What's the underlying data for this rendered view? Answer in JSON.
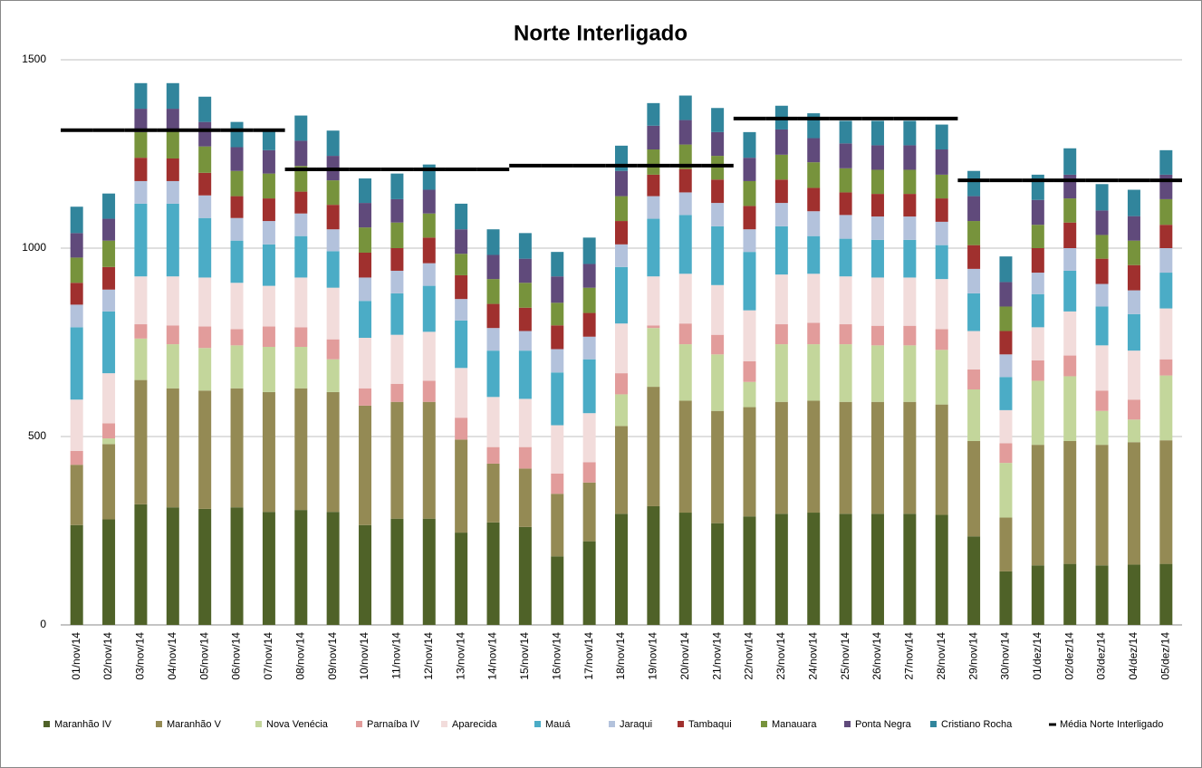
{
  "chart_data": {
    "type": "bar",
    "stacked": true,
    "title": "Norte Interligado",
    "categories": [
      "01/nov/14",
      "02/nov/14",
      "03/nov/14",
      "04/nov/14",
      "05/nov/14",
      "06/nov/14",
      "07/nov/14",
      "08/nov/14",
      "09/nov/14",
      "10/nov/14",
      "11/nov/14",
      "12/nov/14",
      "13/nov/14",
      "14/nov/14",
      "15/nov/14",
      "16/nov/14",
      "17/nov/14",
      "18/nov/14",
      "19/nov/14",
      "20/nov/14",
      "21/nov/14",
      "22/nov/14",
      "23/nov/14",
      "24/nov/14",
      "25/nov/14",
      "26/nov/14",
      "27/nov/14",
      "28/nov/14",
      "29/nov/14",
      "30/nov/14",
      "01/dez/14",
      "02/dez/14",
      "03/dez/14",
      "04/dez/14",
      "05/dez/14"
    ],
    "ylim": [
      0,
      1500
    ],
    "yticks": [
      0,
      500,
      1000,
      1500
    ],
    "grid": true,
    "legend": "bottom",
    "series": [
      {
        "name": "Maranhão IV",
        "color": "#4f6228",
        "values": [
          265,
          280,
          320,
          312,
          308,
          312,
          300,
          305,
          300,
          265,
          282,
          282,
          245,
          272,
          260,
          182,
          222,
          295,
          315,
          298,
          270,
          288,
          295,
          298,
          295,
          295,
          295,
          292,
          235,
          142,
          158,
          162,
          158,
          160,
          162
        ]
      },
      {
        "name": "Maranhão V",
        "color": "#948a54",
        "values": [
          160,
          200,
          330,
          316,
          314,
          316,
          318,
          323,
          318,
          317,
          310,
          310,
          247,
          156,
          155,
          166,
          156,
          233,
          317,
          297,
          298,
          290,
          297,
          297,
          297,
          297,
          297,
          293,
          253,
          143,
          320,
          326,
          320,
          325,
          328
        ]
      },
      {
        "name": "Nova Venécia",
        "color": "#c3d69b",
        "values": [
          0,
          15,
          110,
          117,
          113,
          114,
          120,
          110,
          87,
          0,
          0,
          0,
          0,
          0,
          0,
          0,
          0,
          84,
          156,
          150,
          150,
          67,
          153,
          150,
          153,
          150,
          150,
          145,
          137,
          145,
          170,
          172,
          90,
          60,
          172
        ]
      },
      {
        "name": "Parnaíba IV",
        "color": "#e29c9b",
        "values": [
          37,
          40,
          38,
          50,
          57,
          43,
          54,
          52,
          53,
          46,
          48,
          56,
          58,
          44,
          57,
          54,
          54,
          56,
          7,
          55,
          52,
          55,
          53,
          57,
          53,
          52,
          52,
          55,
          53,
          52,
          54,
          55,
          54,
          53,
          43
        ]
      },
      {
        "name": "Aparecida",
        "color": "#f2dcdb",
        "values": [
          136,
          133,
          127,
          130,
          130,
          123,
          108,
          132,
          137,
          134,
          130,
          130,
          132,
          133,
          128,
          128,
          130,
          132,
          130,
          132,
          132,
          135,
          132,
          130,
          127,
          128,
          128,
          133,
          102,
          88,
          88,
          117,
          120,
          130,
          135
        ]
      },
      {
        "name": "Mauá",
        "color": "#4bacc6",
        "values": [
          192,
          164,
          193,
          193,
          158,
          112,
          110,
          110,
          97,
          98,
          110,
          122,
          126,
          123,
          128,
          140,
          143,
          150,
          153,
          156,
          156,
          155,
          128,
          100,
          100,
          100,
          100,
          90,
          100,
          88,
          88,
          108,
          103,
          97,
          95
        ]
      },
      {
        "name": "Jaraqui",
        "color": "#b3c2dc",
        "values": [
          60,
          58,
          60,
          60,
          60,
          60,
          62,
          60,
          58,
          62,
          60,
          60,
          57,
          60,
          52,
          62,
          60,
          60,
          60,
          60,
          62,
          60,
          62,
          66,
          63,
          62,
          62,
          62,
          65,
          60,
          57,
          60,
          60,
          63,
          65
        ]
      },
      {
        "name": "Tambaqui",
        "color": "#a0302e",
        "values": [
          58,
          60,
          62,
          60,
          60,
          58,
          60,
          58,
          65,
          66,
          60,
          68,
          63,
          64,
          62,
          63,
          63,
          62,
          57,
          62,
          62,
          62,
          62,
          62,
          60,
          60,
          60,
          62,
          63,
          62,
          65,
          68,
          67,
          67,
          62
        ]
      },
      {
        "name": "Manauara",
        "color": "#77933c",
        "values": [
          67,
          70,
          68,
          72,
          70,
          67,
          66,
          68,
          65,
          67,
          68,
          64,
          57,
          66,
          66,
          60,
          67,
          66,
          67,
          65,
          63,
          66,
          66,
          68,
          64,
          64,
          64,
          63,
          64,
          65,
          62,
          64,
          63,
          65,
          68
        ]
      },
      {
        "name": "Ponta Negra",
        "color": "#604a7b",
        "values": [
          65,
          58,
          62,
          60,
          65,
          63,
          62,
          67,
          65,
          65,
          62,
          63,
          65,
          64,
          64,
          70,
          63,
          67,
          63,
          65,
          63,
          62,
          67,
          64,
          66,
          65,
          65,
          67,
          66,
          65,
          66,
          63,
          65,
          65,
          65
        ]
      },
      {
        "name": "Cristiano Rocha",
        "color": "#31859c",
        "values": [
          70,
          67,
          68,
          68,
          67,
          67,
          52,
          67,
          67,
          65,
          68,
          67,
          68,
          68,
          68,
          65,
          70,
          67,
          60,
          65,
          64,
          68,
          63,
          66,
          60,
          65,
          65,
          66,
          67,
          68,
          67,
          70,
          70,
          70,
          65
        ]
      },
      {
        "name": "Média Norte Interligado",
        "color": "#000000",
        "type": "line",
        "values": [
          1313,
          1313,
          1313,
          1313,
          1313,
          1313,
          1313,
          1209,
          1209,
          1209,
          1209,
          1209,
          1209,
          1209,
          1219,
          1219,
          1219,
          1219,
          1219,
          1219,
          1219,
          1344,
          1344,
          1344,
          1344,
          1344,
          1344,
          1344,
          1180,
          1180,
          1180,
          1180,
          1180,
          1180,
          1180
        ]
      }
    ]
  }
}
